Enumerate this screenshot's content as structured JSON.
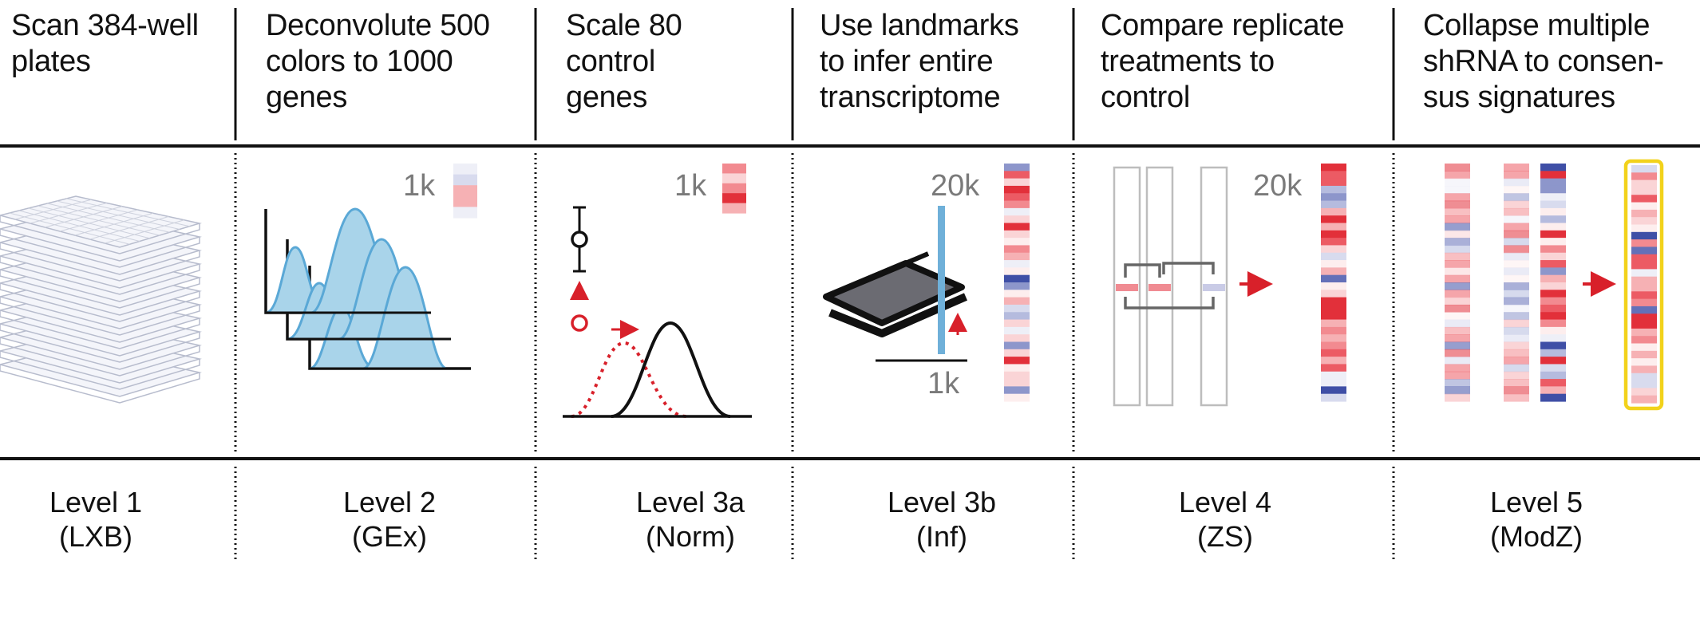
{
  "columns": [
    {
      "description": [
        "Scan 384-well",
        "plates"
      ],
      "level": "Level 1",
      "code": "(LXB)",
      "labels": []
    },
    {
      "description": [
        "Deconvolute 500",
        "colors to 1000",
        "genes"
      ],
      "level": "Level 2",
      "code": "(GEx)",
      "labels": [
        "1k"
      ]
    },
    {
      "description": [
        "Scale 80",
        "control",
        "genes"
      ],
      "level": "Level 3a",
      "code": "(Norm)",
      "labels": [
        "1k"
      ]
    },
    {
      "description": [
        "Use landmarks",
        "to infer entire",
        "transcriptome"
      ],
      "level": "Level 3b",
      "code": "(Inf)",
      "labels": [
        "20k",
        "1k"
      ]
    },
    {
      "description": [
        "Compare replicate",
        "treatments to",
        "control"
      ],
      "level": "Level 4",
      "code": "(ZS)",
      "labels": [
        "20k"
      ]
    },
    {
      "description": [
        "Collapse multiple",
        "shRNA to consen-",
        "sus signatures"
      ],
      "level": "Level 5",
      "code": "(ModZ)",
      "labels": []
    }
  ],
  "colors": {
    "line": "#111111",
    "peak_fill": "#a9d4ea",
    "peak_stroke": "#5aa8d6",
    "red": "#d8202a",
    "blue": "#3f4fa6",
    "highlight": "#f2d21b",
    "plate": "#c3c7d6",
    "book": "#6b6b72",
    "landmark_bar": "#6fb0d9",
    "grey_label": "#7a7a7a"
  },
  "icons": [
    "plate-stack-icon",
    "gaussian-peaks-icon",
    "normalization-curve-icon",
    "book-icon",
    "heatmap-strip-icon",
    "arrow-icon"
  ]
}
